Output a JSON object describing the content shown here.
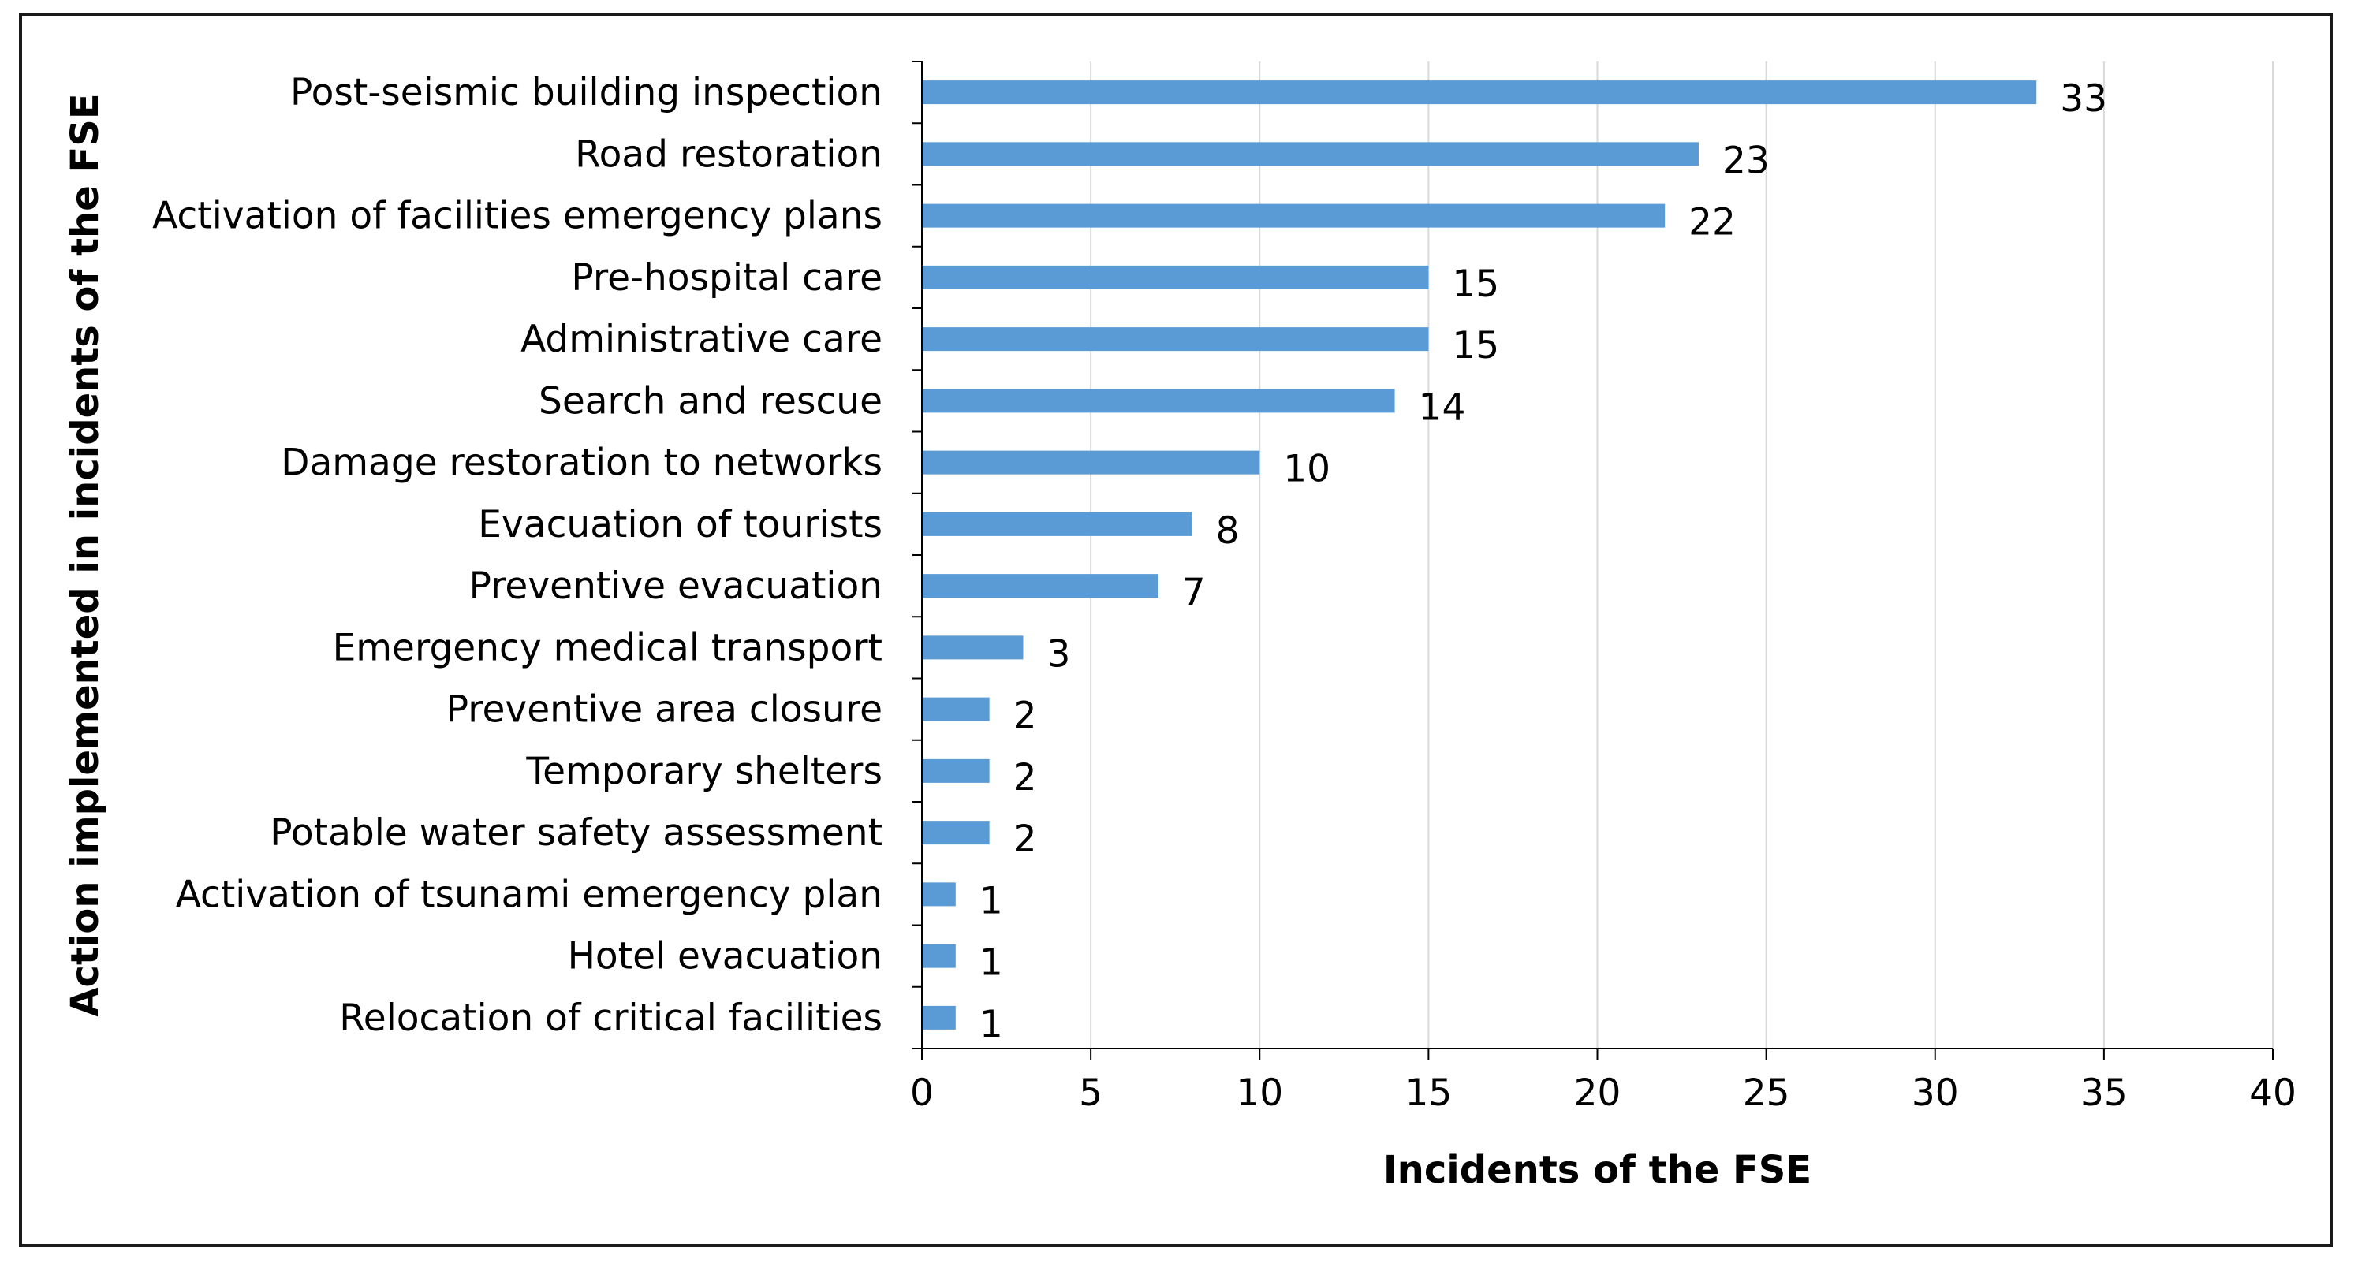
{
  "chart_data": {
    "type": "bar",
    "orientation": "horizontal",
    "categories": [
      "Post-seismic building inspection",
      "Road restoration",
      "Activation of facilities emergency plans",
      "Pre-hospital care",
      "Administrative care",
      "Search and rescue",
      "Damage restoration to networks",
      "Evacuation of tourists",
      "Preventive evacuation",
      "Emergency medical transport",
      "Preventive area closure",
      "Temporary shelters",
      "Potable water safety assessment",
      "Activation of tsunami emergency plan",
      "Hotel evacuation",
      "Relocation of critical facilities"
    ],
    "values": [
      33,
      23,
      22,
      15,
      15,
      14,
      10,
      8,
      7,
      3,
      2,
      2,
      2,
      1,
      1,
      1
    ],
    "title": "",
    "xlabel": "Incidents of the FSE",
    "ylabel": "Action implemented in incidents of the FSE",
    "xlim": [
      0,
      40
    ],
    "xticks": [
      0,
      5,
      10,
      15,
      20,
      25,
      30,
      35,
      40
    ],
    "grid": "vertical",
    "legend": "none",
    "data_labels": true,
    "bar_color": "#5b9bd5"
  }
}
